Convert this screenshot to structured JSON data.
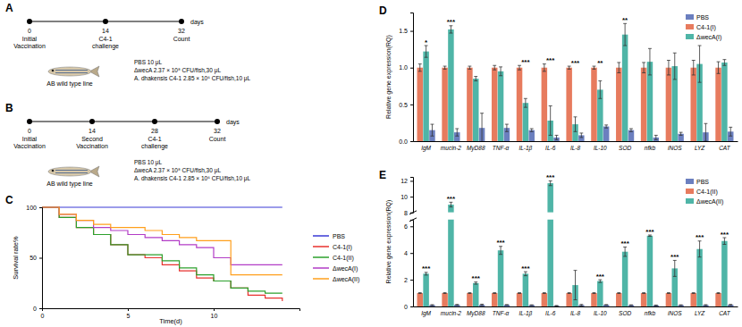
{
  "diagrams": [
    {
      "panel": "A",
      "axis_label": "days",
      "events": [
        {
          "day": 0,
          "lines": [
            "Initial",
            "Vaccination"
          ]
        },
        {
          "day": 14,
          "lines": [
            "C4-1",
            "challenge"
          ]
        },
        {
          "day": 32,
          "lines": [
            "Count"
          ]
        }
      ],
      "organism": "AB wild type line",
      "doses": [
        "PBS 10 μL",
        "ΔwecA 2.37 × 10⁸ CFU/fish,30 μL",
        "A. dhakensis C4-1 2.85 × 10⁶ CFU/fish,10 μL"
      ]
    },
    {
      "panel": "B",
      "axis_label": "days",
      "events": [
        {
          "day": 0,
          "lines": [
            "Initial",
            "Vaccination"
          ]
        },
        {
          "day": 14,
          "lines": [
            "Second",
            "Vaccination"
          ]
        },
        {
          "day": 28,
          "lines": [
            "C4-1",
            "challenge"
          ]
        },
        {
          "day": 32,
          "lines": [
            "Count"
          ]
        }
      ],
      "organism": "AB wild type line",
      "doses": [
        "PBS 10 μL",
        "ΔwecA 2.37 × 10⁸ CFU/fish,30 μL",
        "A. dhakensis C4-1 2.85 × 10⁶ CFU/fish,10 μL"
      ]
    }
  ],
  "chart_data": [
    {
      "panel": "C",
      "type": "line",
      "line_style": "step",
      "x_label": "Time(d)",
      "y_label": "Survival rate%",
      "x": [
        0,
        1,
        2,
        3,
        4,
        5,
        6,
        7,
        8,
        9,
        10,
        11,
        12,
        13,
        14
      ],
      "xlim": [
        0,
        15
      ],
      "xticks": [
        0,
        5,
        10
      ],
      "ylim": [
        0,
        100
      ],
      "yticks": [
        0,
        50,
        100
      ],
      "series": [
        {
          "name": "PBS",
          "color": "#3a3ad6",
          "values": [
            100,
            100,
            100,
            100,
            100,
            100,
            100,
            100,
            100,
            100,
            100,
            100,
            100,
            100,
            100
          ]
        },
        {
          "name": "C4-1(I)",
          "color": "#e8312e",
          "values": [
            100,
            90,
            80,
            73,
            63,
            53,
            50,
            43,
            37,
            30,
            27,
            20,
            13,
            10,
            7
          ]
        },
        {
          "name": "C4-1(II)",
          "color": "#2ca02c",
          "values": [
            100,
            90,
            80,
            73,
            63,
            53,
            53,
            47,
            40,
            33,
            27,
            20,
            17,
            15,
            15
          ]
        },
        {
          "name": "ΔwecA(I)",
          "color": "#b23cc6",
          "values": [
            100,
            93,
            87,
            80,
            77,
            73,
            70,
            67,
            63,
            60,
            50,
            43,
            43,
            43,
            43
          ]
        },
        {
          "name": "ΔwecA(II)",
          "color": "#ff9f1c",
          "values": [
            100,
            93,
            87,
            83,
            80,
            80,
            77,
            73,
            70,
            67,
            67,
            33,
            33,
            33,
            33
          ]
        }
      ]
    },
    {
      "panel": "D",
      "type": "bar",
      "y_label": "Relative gene expression(RQ)",
      "categories": [
        "IgM",
        "mucin-2",
        "MyD88",
        "TNF-α",
        "IL-1β",
        "IL-6",
        "IL-8",
        "IL-10",
        "SOD",
        "nfkb",
        "iNOS",
        "LYZ",
        "CAT"
      ],
      "ylim": [
        0,
        1.75
      ],
      "yticks": [
        {
          "value": 0,
          "label": "0.0"
        },
        0.5,
        {
          "value": 1,
          "label": "1.0"
        },
        1.5
      ],
      "annotations": [
        "*",
        "***",
        null,
        null,
        "***",
        "***",
        "***",
        "**",
        "**",
        null,
        null,
        null,
        null
      ],
      "series": [
        {
          "name": "C4-1(I)",
          "color": "#e77b5e",
          "values": [
            1.0,
            1.0,
            1.0,
            1.0,
            1.0,
            1.0,
            1.0,
            1.0,
            1.0,
            1.0,
            1.0,
            1.0,
            1.0
          ],
          "errors": [
            0.05,
            0.02,
            0.02,
            0.03,
            0.03,
            0.05,
            0.02,
            0.02,
            0.07,
            0.07,
            0.1,
            0.1,
            0.08
          ]
        },
        {
          "name": "ΔwecA(I)",
          "color": "#4fb5a7",
          "values": [
            1.22,
            1.52,
            0.85,
            0.95,
            0.52,
            0.28,
            0.23,
            0.7,
            1.45,
            1.08,
            1.02,
            1.05,
            1.07
          ],
          "errors": [
            0.08,
            0.05,
            0.03,
            0.06,
            0.06,
            0.2,
            0.1,
            0.12,
            0.15,
            0.18,
            0.18,
            0.25,
            0.04
          ]
        },
        {
          "name": "PBS",
          "color": "#6b7fbf",
          "values": [
            0.15,
            0.12,
            0.18,
            0.18,
            0.15,
            0.05,
            0.08,
            0.2,
            0.15,
            0.05,
            0.1,
            0.12,
            0.13
          ],
          "errors": [
            0.08,
            0.05,
            0.2,
            0.05,
            0.02,
            0.03,
            0.03,
            0.02,
            0.02,
            0.03,
            0.02,
            0.12,
            0.06
          ]
        }
      ]
    },
    {
      "panel": "E",
      "type": "bar",
      "y_label": "Relative gene expression(RQ)",
      "categories": [
        "IgM",
        "mucin-2",
        "MyD88",
        "TNF-α",
        "IL-1β",
        "IL-6",
        "IL-8",
        "IL-10",
        "SOD",
        "nfkb",
        "iNOS",
        "LYZ",
        "CAT"
      ],
      "ylim": [
        0,
        12.5
      ],
      "ybreak": [
        6.5,
        8
      ],
      "yticks": [
        0,
        2,
        4,
        6,
        8,
        10,
        12
      ],
      "annotations": [
        "***",
        "***",
        "***",
        "***",
        "***",
        "***",
        null,
        "***",
        "***",
        "***",
        "***",
        "***",
        "***"
      ],
      "series": [
        {
          "name": "C4-1(II)",
          "color": "#e77b5e",
          "values": [
            1.0,
            1.0,
            1.0,
            1.0,
            1.0,
            1.0,
            1.0,
            1.0,
            1.0,
            1.0,
            1.0,
            1.0,
            1.0
          ],
          "errors": [
            0.03,
            0.03,
            0.03,
            0.03,
            0.03,
            0.03,
            0.03,
            0.03,
            0.03,
            0.03,
            0.03,
            0.03,
            0.03
          ]
        },
        {
          "name": "ΔwecA(II)",
          "color": "#4fb5a7",
          "values": [
            2.45,
            9.0,
            1.75,
            4.2,
            2.45,
            11.7,
            1.6,
            1.9,
            4.1,
            5.3,
            2.85,
            4.3,
            4.9
          ],
          "errors": [
            0.1,
            0.3,
            0.08,
            0.3,
            0.15,
            0.3,
            1.1,
            0.1,
            0.35,
            0.05,
            0.6,
            0.6,
            0.25
          ]
        },
        {
          "name": "PBS",
          "color": "#6b7fbf",
          "values": [
            0.1,
            0.12,
            0.12,
            0.12,
            0.1,
            0.05,
            0.1,
            0.12,
            0.1,
            0.08,
            0.1,
            0.1,
            0.12
          ],
          "errors": [
            0.03,
            0.03,
            0.05,
            0.02,
            0.02,
            0.02,
            0.05,
            0.02,
            0.02,
            0.02,
            0.02,
            0.03,
            0.03
          ]
        }
      ]
    }
  ]
}
